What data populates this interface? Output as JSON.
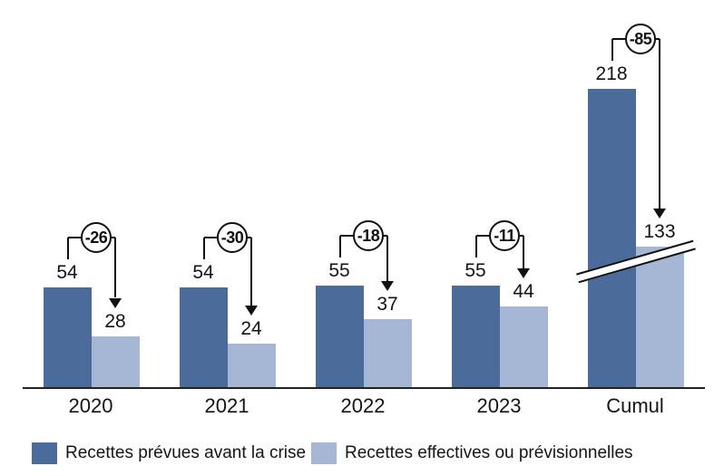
{
  "chart_data": {
    "type": "bar",
    "title": "",
    "xlabel": "",
    "ylabel": "",
    "grid": false,
    "legend_position": "bottom",
    "categories": [
      "2020",
      "2021",
      "2022",
      "2023",
      "Cumul"
    ],
    "series": [
      {
        "name": "Recettes prévues avant la crise",
        "color": "#4b6c9b",
        "values": [
          54,
          54,
          55,
          55,
          218
        ]
      },
      {
        "name": "Recettes effectives ou prévisionnelles",
        "color": "#a5b7d5",
        "values": [
          28,
          24,
          37,
          44,
          133
        ]
      }
    ],
    "diff_values": [
      -26,
      -30,
      -18,
      -11,
      -85
    ],
    "diff_labels": [
      "-26",
      "-30",
      "-18",
      "-11",
      "-85"
    ],
    "axis_break_category": "Cumul",
    "ylim": [
      0,
      230
    ]
  }
}
